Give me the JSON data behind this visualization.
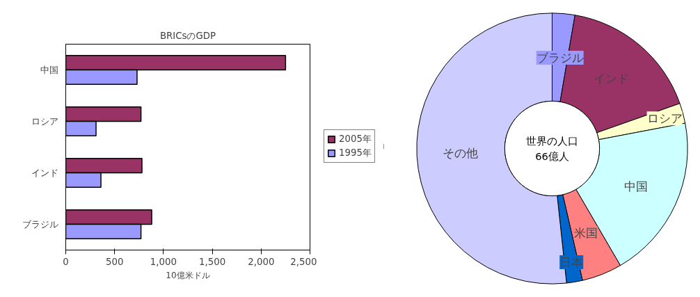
{
  "chart_data": [
    {
      "type": "bar",
      "orientation": "horizontal",
      "title": "BRICsのGDP",
      "xlabel": "10億米ドル",
      "categories": [
        "中国",
        "ロシア",
        "インド",
        "ブラジル"
      ],
      "series": [
        {
          "name": "2005年",
          "color": "#993366",
          "values": [
            2250,
            770,
            780,
            880
          ]
        },
        {
          "name": "1995年",
          "color": "#9999ff",
          "values": [
            730,
            310,
            360,
            770
          ]
        }
      ],
      "xlim": [
        0,
        2500
      ],
      "xticks": [
        0,
        500,
        {
          "value": 1000,
          "label": "1,000"
        },
        {
          "value": 1500,
          "label": "1,500"
        },
        {
          "value": 2000,
          "label": "2,000"
        },
        {
          "value": 2500,
          "label": "2,500"
        }
      ],
      "grid": false,
      "legend": "right"
    },
    {
      "type": "donut",
      "categories": [
        "ブラジル",
        "インド",
        "ロシア",
        "中国",
        "米国",
        "日本",
        "その他"
      ],
      "values": [
        2.7,
        16.9,
        2.4,
        19.6,
        4.8,
        1.9,
        51.7
      ],
      "colors": [
        "#9999ff",
        "#993366",
        "#ffffcc",
        "#ccffff",
        "#ff8080",
        "#0066cc",
        "#ccccff"
      ],
      "annotations": [
        "世界の人口\n66億人"
      ]
    }
  ]
}
